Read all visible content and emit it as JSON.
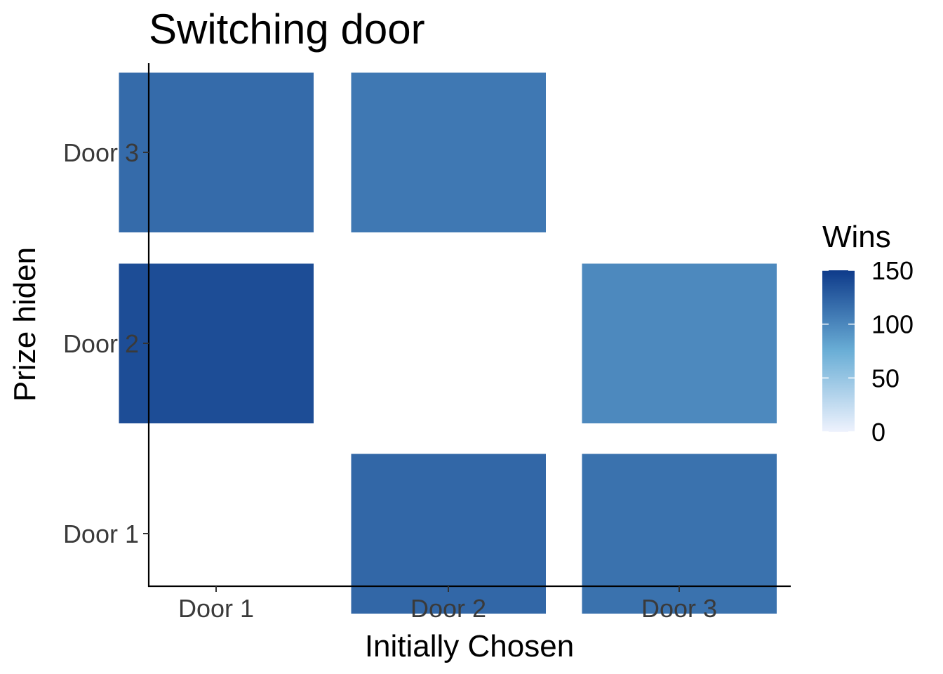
{
  "chart_data": {
    "type": "heatmap",
    "title": "Switching door",
    "xlabel": "Initially Chosen",
    "ylabel": "Prize hiden",
    "x_categories": [
      "Door 1",
      "Door 2",
      "Door 3"
    ],
    "y_categories": [
      "Door 1",
      "Door 2",
      "Door 3"
    ],
    "cells": [
      {
        "x": "Door 1",
        "y": "Door 1",
        "value": 0
      },
      {
        "x": "Door 2",
        "y": "Door 1",
        "value": 121
      },
      {
        "x": "Door 3",
        "y": "Door 1",
        "value": 114
      },
      {
        "x": "Door 1",
        "y": "Door 2",
        "value": 138
      },
      {
        "x": "Door 2",
        "y": "Door 2",
        "value": 0
      },
      {
        "x": "Door 3",
        "y": "Door 2",
        "value": 99
      },
      {
        "x": "Door 1",
        "y": "Door 3",
        "value": 118
      },
      {
        "x": "Door 2",
        "y": "Door 3",
        "value": 110
      },
      {
        "x": "Door 3",
        "y": "Door 3",
        "value": 0
      }
    ],
    "legend": {
      "title": "Wins",
      "placement": "right",
      "range": [
        0,
        150
      ],
      "breaks": [
        0,
        50,
        100,
        150
      ],
      "break_labels": [
        "0",
        "50",
        "100",
        "150"
      ],
      "low_color": "#eef2fd",
      "mid_color": "#6aaed6",
      "high_color": "#0e3a8a"
    },
    "grid": false
  }
}
